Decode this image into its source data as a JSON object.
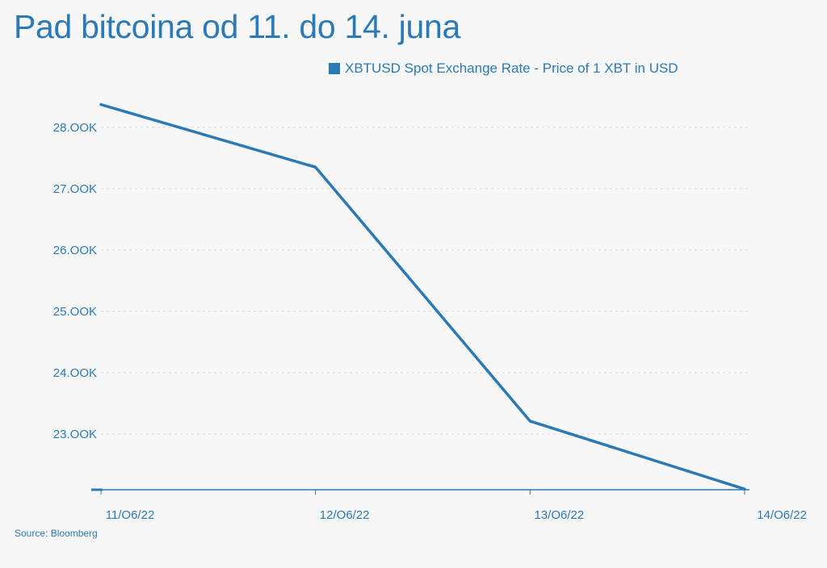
{
  "title": "Pad bitcoina od 11. do 14. juna",
  "source": "Source: Bloomberg",
  "colors": {
    "accent": "#2a7ab8",
    "grid": "#d6d9de",
    "background": "#f7f7f8"
  },
  "chart_data": {
    "type": "line",
    "title": "Pad bitcoina od 11. do 14. juna",
    "xlabel": "",
    "ylabel": "",
    "categories": [
      "11/O6/22",
      "12/O6/22",
      "13/O6/22",
      "14/O6/22"
    ],
    "series": [
      {
        "name": "XBTUSD Spot Exchange Rate - Price of 1 XBT in USD",
        "values": [
          28370,
          27350,
          23210,
          22100
        ]
      }
    ],
    "y_ticks": [
      {
        "value": 23000,
        "label": "23.OOK"
      },
      {
        "value": 24000,
        "label": "24.OOK"
      },
      {
        "value": 25000,
        "label": "25.OOK"
      },
      {
        "value": 26000,
        "label": "26.OOK"
      },
      {
        "value": 27000,
        "label": "27.OOK"
      },
      {
        "value": 28000,
        "label": "28.OOK"
      }
    ],
    "ylim": [
      22090,
      28760
    ],
    "grid": true,
    "legend_position": "top-right"
  }
}
